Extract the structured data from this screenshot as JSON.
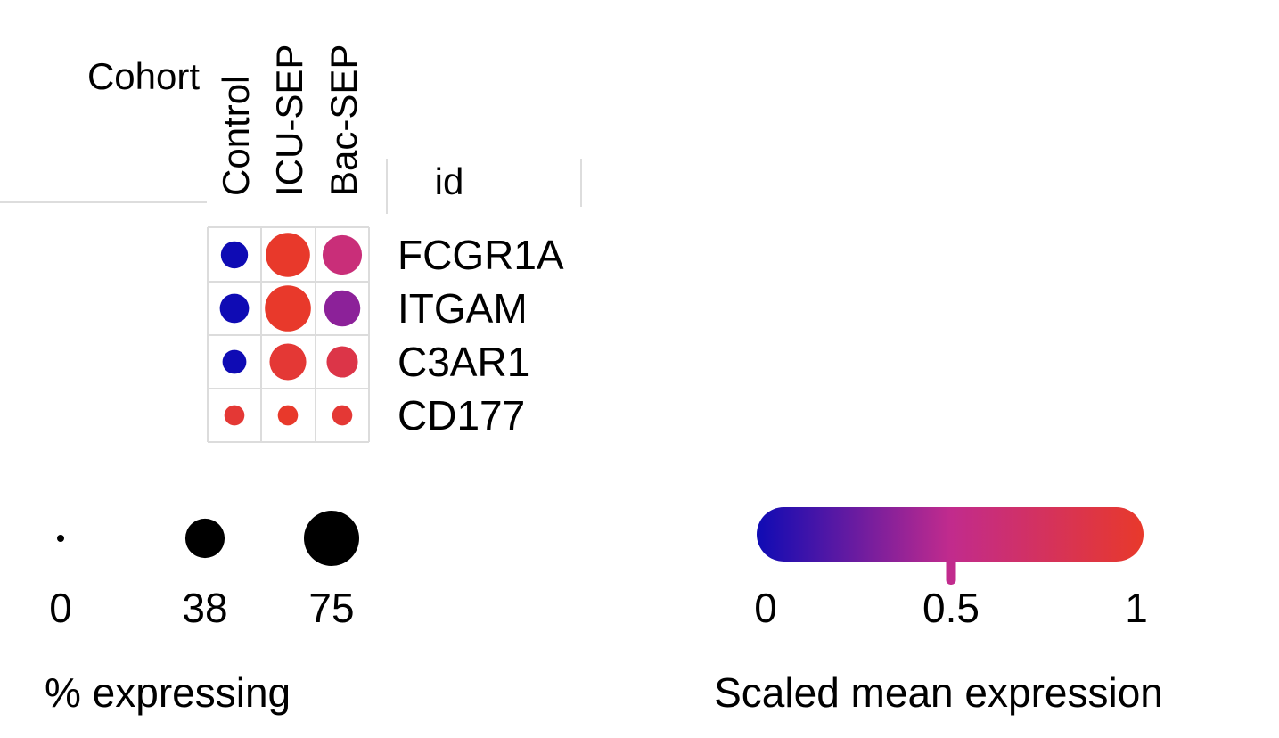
{
  "chart_data": {
    "type": "dot",
    "column_group_label": "Cohort",
    "row_header_label": "id",
    "columns": [
      "Control",
      "ICU-SEP",
      "Bac-SEP"
    ],
    "rows": [
      "FCGR1A",
      "ITGAM",
      "C3AR1",
      "CD177"
    ],
    "pct_expressing": [
      [
        18,
        48,
        38
      ],
      [
        21,
        52,
        32
      ],
      [
        14,
        33,
        24
      ],
      [
        10,
        10,
        10
      ]
    ],
    "scaled_mean_expression": [
      [
        0.0,
        1.0,
        0.6
      ],
      [
        0.0,
        1.0,
        0.35
      ],
      [
        0.0,
        0.95,
        0.85
      ],
      [
        0.95,
        1.0,
        0.95
      ]
    ],
    "size_legend": {
      "title": "% expressing",
      "values": [
        0,
        38,
        75
      ],
      "labels": [
        "0",
        "38",
        "75"
      ]
    },
    "color_legend": {
      "title": "Scaled mean expression",
      "range": [
        0,
        1
      ],
      "ticks": [
        0,
        0.5,
        1
      ],
      "tick_labels": [
        "0",
        "0.5",
        "1"
      ],
      "marker_value": 0.5,
      "colors": {
        "low": "#0f0bb4",
        "mid": "#c12b8d",
        "high": "#e8392b"
      }
    }
  }
}
